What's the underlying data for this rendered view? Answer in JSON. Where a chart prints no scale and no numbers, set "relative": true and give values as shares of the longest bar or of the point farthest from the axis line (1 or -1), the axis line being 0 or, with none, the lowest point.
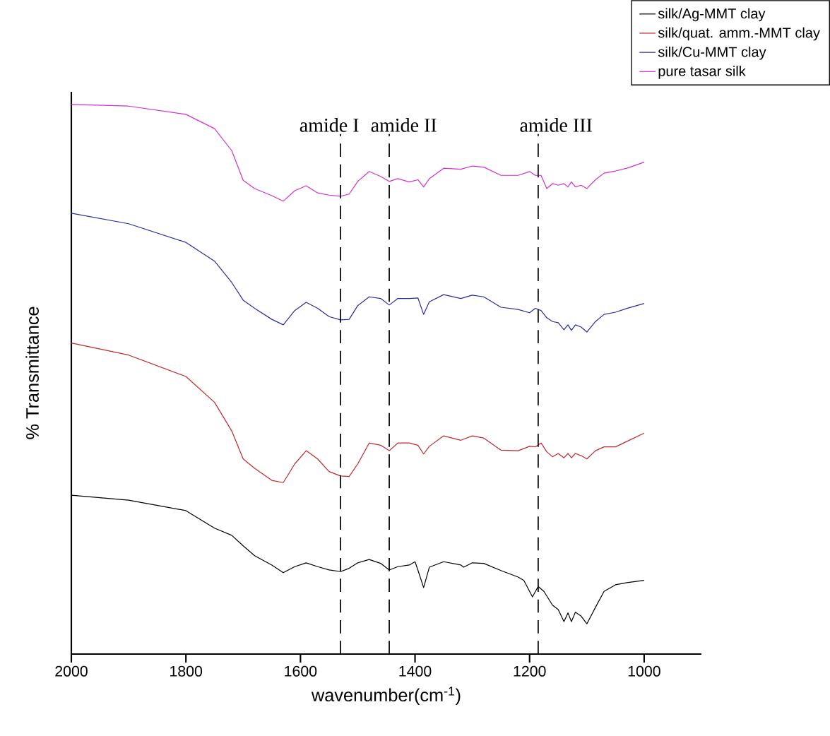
{
  "chart_data": {
    "type": "line",
    "relative": true,
    "xlabel": "wavenumber(cm$^{-1}$)",
    "ylabel": "% Transmittance",
    "xlim": [
      2000,
      900
    ],
    "xticks": [
      2000,
      1800,
      1600,
      1400,
      1200,
      1000
    ],
    "legend": "top right",
    "grid": false,
    "marker": "none",
    "series": [
      {
        "name": "silk/Ag-MMT clay",
        "color": "#000000",
        "x": [
          2000,
          1900,
          1800,
          1750,
          1720,
          1700,
          1680,
          1650,
          1630,
          1610,
          1590,
          1570,
          1550,
          1530,
          1515,
          1500,
          1480,
          1460,
          1445,
          1430,
          1410,
          1400,
          1395,
          1385,
          1375,
          1350,
          1320,
          1315,
          1300,
          1280,
          1250,
          1220,
          1210,
          1200,
          1195,
          1185,
          1175,
          1160,
          1150,
          1140,
          1133,
          1127,
          1120,
          1110,
          1100,
          1085,
          1070,
          1050,
          1030,
          1000
        ],
        "values": [
          0.289,
          0.28,
          0.261,
          0.229,
          0.216,
          0.197,
          0.179,
          0.162,
          0.148,
          0.159,
          0.166,
          0.159,
          0.153,
          0.15,
          0.156,
          0.166,
          0.172,
          0.165,
          0.153,
          0.159,
          0.162,
          0.168,
          0.153,
          0.121,
          0.158,
          0.168,
          0.162,
          0.158,
          0.166,
          0.165,
          0.152,
          0.14,
          0.134,
          0.114,
          0.104,
          0.123,
          0.114,
          0.089,
          0.081,
          0.059,
          0.075,
          0.059,
          0.076,
          0.069,
          0.055,
          0.085,
          0.114,
          0.126,
          0.13,
          0.134
        ]
      },
      {
        "name": "silk/quat. amm.-MMT clay",
        "color": "#c0282e",
        "x": [
          2000,
          1900,
          1800,
          1750,
          1720,
          1700,
          1680,
          1650,
          1630,
          1610,
          1590,
          1570,
          1550,
          1530,
          1515,
          1500,
          1480,
          1460,
          1445,
          1430,
          1410,
          1395,
          1385,
          1375,
          1350,
          1320,
          1300,
          1280,
          1250,
          1220,
          1200,
          1190,
          1180,
          1170,
          1160,
          1150,
          1140,
          1133,
          1127,
          1120,
          1110,
          1100,
          1085,
          1070,
          1050,
          1030,
          1000
        ],
        "values": [
          0.566,
          0.544,
          0.505,
          0.458,
          0.406,
          0.355,
          0.338,
          0.316,
          0.312,
          0.346,
          0.37,
          0.355,
          0.332,
          0.324,
          0.323,
          0.346,
          0.384,
          0.38,
          0.37,
          0.384,
          0.384,
          0.38,
          0.364,
          0.378,
          0.397,
          0.389,
          0.397,
          0.393,
          0.371,
          0.37,
          0.378,
          0.377,
          0.384,
          0.368,
          0.359,
          0.365,
          0.357,
          0.365,
          0.357,
          0.365,
          0.361,
          0.355,
          0.37,
          0.377,
          0.377,
          0.387,
          0.402
        ]
      },
      {
        "name": "silk/Cu-MMT clay",
        "color": "#2a2aa0",
        "x": [
          2000,
          1900,
          1800,
          1750,
          1720,
          1700,
          1680,
          1650,
          1630,
          1610,
          1590,
          1570,
          1550,
          1530,
          1515,
          1500,
          1480,
          1460,
          1445,
          1430,
          1410,
          1395,
          1385,
          1375,
          1350,
          1320,
          1300,
          1280,
          1250,
          1220,
          1200,
          1190,
          1180,
          1170,
          1160,
          1150,
          1140,
          1133,
          1127,
          1120,
          1110,
          1100,
          1085,
          1070,
          1050,
          1030,
          1000
        ],
        "values": [
          0.802,
          0.783,
          0.749,
          0.715,
          0.676,
          0.644,
          0.629,
          0.609,
          0.599,
          0.625,
          0.64,
          0.629,
          0.614,
          0.608,
          0.609,
          0.634,
          0.65,
          0.647,
          0.635,
          0.647,
          0.647,
          0.648,
          0.618,
          0.641,
          0.654,
          0.647,
          0.653,
          0.65,
          0.631,
          0.627,
          0.621,
          0.629,
          0.625,
          0.612,
          0.605,
          0.603,
          0.59,
          0.599,
          0.589,
          0.599,
          0.595,
          0.586,
          0.605,
          0.618,
          0.622,
          0.629,
          0.638
        ]
      },
      {
        "name": "pure tasar silk",
        "color": "#d030d0",
        "x": [
          2000,
          1900,
          1800,
          1750,
          1720,
          1700,
          1680,
          1650,
          1630,
          1610,
          1590,
          1570,
          1550,
          1530,
          1515,
          1500,
          1480,
          1460,
          1445,
          1430,
          1410,
          1395,
          1385,
          1375,
          1350,
          1320,
          1300,
          1280,
          1250,
          1220,
          1200,
          1190,
          1180,
          1170,
          1160,
          1150,
          1140,
          1133,
          1127,
          1120,
          1110,
          1100,
          1085,
          1070,
          1050,
          1030,
          1000
        ],
        "values": [
          1.0,
          0.997,
          0.982,
          0.956,
          0.916,
          0.862,
          0.847,
          0.834,
          0.824,
          0.843,
          0.852,
          0.839,
          0.835,
          0.833,
          0.837,
          0.86,
          0.878,
          0.869,
          0.86,
          0.865,
          0.859,
          0.863,
          0.85,
          0.865,
          0.884,
          0.882,
          0.888,
          0.886,
          0.871,
          0.871,
          0.878,
          0.871,
          0.871,
          0.847,
          0.856,
          0.853,
          0.856,
          0.85,
          0.859,
          0.85,
          0.853,
          0.847,
          0.863,
          0.875,
          0.879,
          0.884,
          0.895
        ]
      }
    ],
    "ref_lines": [
      {
        "axis": "x",
        "value": 1530,
        "label": "amide I",
        "color": "#000000",
        "line_style": "dashed"
      },
      {
        "axis": "x",
        "value": 1445,
        "label": "amide II",
        "color": "#000000",
        "line_style": "dashed"
      },
      {
        "axis": "x",
        "value": 1185,
        "label": "amide III",
        "color": "#000000",
        "line_style": "dashed"
      }
    ]
  }
}
